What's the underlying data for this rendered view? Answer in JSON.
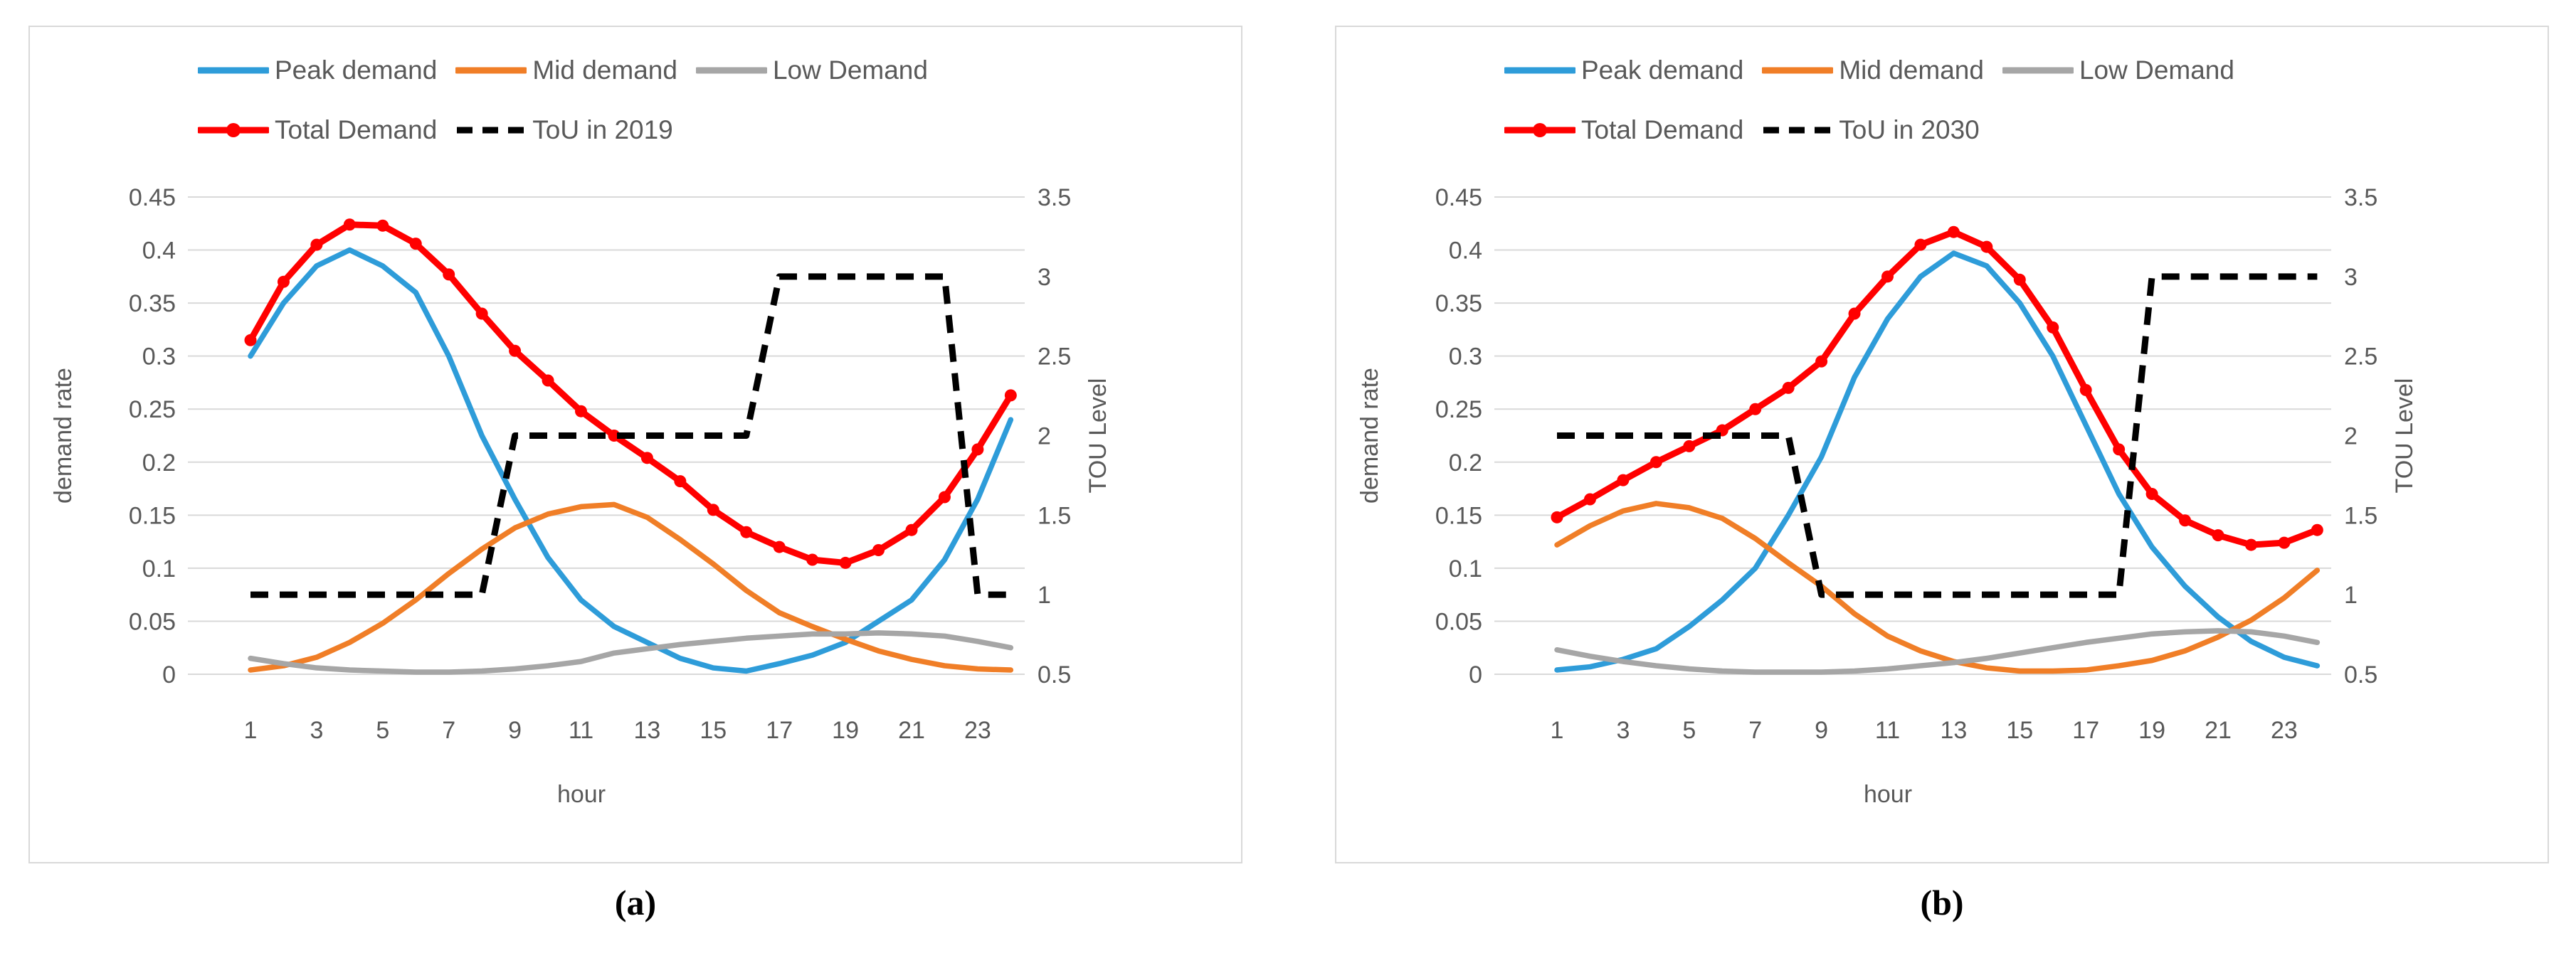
{
  "figure": {
    "captions": {
      "a": "(a)",
      "b": "(b)"
    },
    "colors": {
      "peak_demand": "#2E9CD9",
      "mid_demand": "#F07E27",
      "low_demand": "#A6A6A6",
      "total_demand": "#FF0000",
      "tou": "#000000",
      "gridline": "#D9D9D9",
      "axis_text": "#595959",
      "panel_border": "#D9D9D9"
    }
  },
  "chart_data": [
    {
      "id": "a",
      "type": "line",
      "caption": "(a)",
      "xlabel": "hour",
      "x": [
        1,
        2,
        3,
        4,
        5,
        6,
        7,
        8,
        9,
        10,
        11,
        12,
        13,
        14,
        15,
        16,
        17,
        18,
        19,
        20,
        21,
        22,
        23,
        24
      ],
      "x_ticks": [
        1,
        3,
        5,
        7,
        9,
        11,
        13,
        15,
        17,
        19,
        21,
        23
      ],
      "left_axis": {
        "label": "demand rate",
        "min": 0,
        "max": 0.45,
        "step": 0.05,
        "tick_labels": [
          "0.45",
          "0.4",
          "0.35",
          "0.3",
          "0.25",
          "0.2",
          "0.15",
          "0.1",
          "0.05",
          "0"
        ]
      },
      "right_axis": {
        "label": "TOU Level",
        "min": 0.5,
        "max": 3.5,
        "step": 0.5,
        "tick_labels": [
          "3.5",
          "3",
          "2.5",
          "2",
          "1.5",
          "1",
          "0.5"
        ]
      },
      "grid": true,
      "legend_rows": [
        [
          "Peak demand",
          "Mid demand",
          "Low Demand"
        ],
        [
          "Total Demand",
          "ToU in 2019"
        ]
      ],
      "series": [
        {
          "name": "Peak demand",
          "color": "#2E9CD9",
          "axis": "left",
          "style": "solid",
          "marker": false,
          "values": [
            0.3,
            0.35,
            0.385,
            0.4,
            0.385,
            0.36,
            0.3,
            0.225,
            0.165,
            0.11,
            0.07,
            0.045,
            0.03,
            0.015,
            0.006,
            0.003,
            0.01,
            0.018,
            0.03,
            0.05,
            0.07,
            0.108,
            0.165,
            0.24
          ]
        },
        {
          "name": "Mid demand",
          "color": "#F07E27",
          "axis": "left",
          "style": "solid",
          "marker": false,
          "values": [
            0.004,
            0.008,
            0.016,
            0.03,
            0.048,
            0.07,
            0.095,
            0.118,
            0.138,
            0.151,
            0.158,
            0.16,
            0.148,
            0.127,
            0.104,
            0.079,
            0.058,
            0.045,
            0.033,
            0.022,
            0.014,
            0.008,
            0.005,
            0.004
          ]
        },
        {
          "name": "Low Demand",
          "color": "#A6A6A6",
          "axis": "left",
          "style": "solid",
          "marker": false,
          "values": [
            0.015,
            0.01,
            0.006,
            0.004,
            0.003,
            0.002,
            0.002,
            0.003,
            0.005,
            0.008,
            0.012,
            0.02,
            0.024,
            0.028,
            0.031,
            0.034,
            0.036,
            0.038,
            0.038,
            0.039,
            0.038,
            0.036,
            0.031,
            0.025
          ]
        },
        {
          "name": "Total Demand",
          "color": "#FF0000",
          "axis": "left",
          "style": "solid",
          "marker": true,
          "values": [
            0.315,
            0.37,
            0.405,
            0.424,
            0.423,
            0.406,
            0.377,
            0.34,
            0.305,
            0.277,
            0.248,
            0.225,
            0.204,
            0.182,
            0.155,
            0.134,
            0.12,
            0.108,
            0.105,
            0.117,
            0.136,
            0.167,
            0.212,
            0.263
          ]
        },
        {
          "name": "ToU in 2019",
          "color": "#000000",
          "axis": "right",
          "style": "dashed",
          "marker": false,
          "values": [
            1,
            1,
            1,
            1,
            1,
            1,
            1,
            1,
            2,
            2,
            2,
            2,
            2,
            2,
            2,
            2,
            3,
            3,
            3,
            3,
            3,
            3,
            1,
            1
          ]
        }
      ]
    },
    {
      "id": "b",
      "type": "line",
      "caption": "(b)",
      "xlabel": "hour",
      "x": [
        1,
        2,
        3,
        4,
        5,
        6,
        7,
        8,
        9,
        10,
        11,
        12,
        13,
        14,
        15,
        16,
        17,
        18,
        19,
        20,
        21,
        22,
        23,
        24
      ],
      "x_ticks": [
        1,
        3,
        5,
        7,
        9,
        11,
        13,
        15,
        17,
        19,
        21,
        23
      ],
      "left_axis": {
        "label": "demand rate",
        "min": 0,
        "max": 0.45,
        "step": 0.05,
        "tick_labels": [
          "0.45",
          "0.4",
          "0.35",
          "0.3",
          "0.25",
          "0.2",
          "0.15",
          "0.1",
          "0.05",
          "0"
        ]
      },
      "right_axis": {
        "label": "TOU Level",
        "min": 0.5,
        "max": 3.5,
        "step": 0.5,
        "tick_labels": [
          "3.5",
          "3",
          "2.5",
          "2",
          "1.5",
          "1",
          "0.5"
        ]
      },
      "grid": true,
      "legend_rows": [
        [
          "Peak demand",
          "Mid demand",
          "Low Demand"
        ],
        [
          "Total Demand",
          "ToU in 2030"
        ]
      ],
      "series": [
        {
          "name": "Peak demand",
          "color": "#2E9CD9",
          "axis": "left",
          "style": "solid",
          "marker": false,
          "values": [
            0.004,
            0.007,
            0.014,
            0.024,
            0.045,
            0.07,
            0.1,
            0.15,
            0.205,
            0.28,
            0.335,
            0.375,
            0.397,
            0.385,
            0.35,
            0.3,
            0.235,
            0.17,
            0.12,
            0.083,
            0.054,
            0.031,
            0.016,
            0.008
          ]
        },
        {
          "name": "Mid demand",
          "color": "#F07E27",
          "axis": "left",
          "style": "solid",
          "marker": false,
          "values": [
            0.122,
            0.14,
            0.154,
            0.161,
            0.157,
            0.147,
            0.128,
            0.105,
            0.083,
            0.057,
            0.036,
            0.022,
            0.012,
            0.006,
            0.003,
            0.003,
            0.004,
            0.008,
            0.013,
            0.022,
            0.035,
            0.051,
            0.072,
            0.098
          ]
        },
        {
          "name": "Low Demand",
          "color": "#A6A6A6",
          "axis": "left",
          "style": "solid",
          "marker": false,
          "values": [
            0.023,
            0.017,
            0.012,
            0.008,
            0.005,
            0.003,
            0.002,
            0.002,
            0.002,
            0.003,
            0.005,
            0.008,
            0.011,
            0.015,
            0.02,
            0.025,
            0.03,
            0.034,
            0.038,
            0.04,
            0.041,
            0.04,
            0.036,
            0.03
          ]
        },
        {
          "name": "Total Demand",
          "color": "#FF0000",
          "axis": "left",
          "style": "solid",
          "marker": true,
          "values": [
            0.148,
            0.165,
            0.183,
            0.2,
            0.215,
            0.23,
            0.25,
            0.27,
            0.295,
            0.34,
            0.375,
            0.405,
            0.417,
            0.403,
            0.372,
            0.327,
            0.268,
            0.212,
            0.17,
            0.145,
            0.131,
            0.122,
            0.124,
            0.136
          ]
        },
        {
          "name": "ToU in 2030",
          "color": "#000000",
          "axis": "right",
          "style": "dashed",
          "marker": false,
          "values": [
            2,
            2,
            2,
            2,
            2,
            2,
            2,
            2,
            1,
            1,
            1,
            1,
            1,
            1,
            1,
            1,
            1,
            1,
            3,
            3,
            3,
            3,
            3,
            3
          ]
        }
      ]
    }
  ]
}
